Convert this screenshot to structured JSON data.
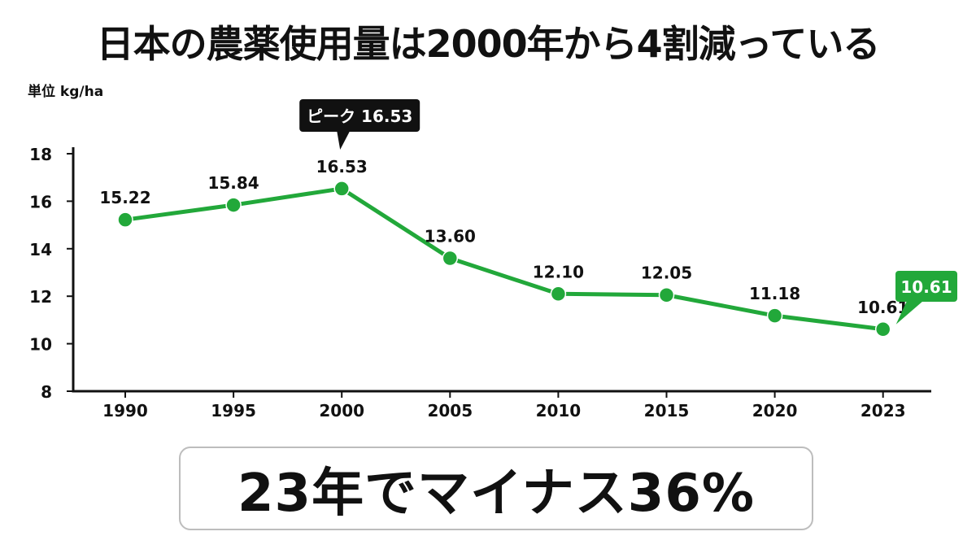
{
  "colors": {
    "line": "#22a83a",
    "axis": "#111111",
    "peak_callout": "#111111",
    "latest_callout": "#22a83a"
  },
  "chart_data": {
    "type": "line",
    "title": "日本の農薬使用量は2000年から4割減っている",
    "ylabel": "単位 kg/ha",
    "xlabel": "",
    "ylim": [
      8,
      18
    ],
    "yticks": [
      "18",
      "16",
      "14",
      "12",
      "10",
      "8"
    ],
    "categories": [
      "1990",
      "1995",
      "2000",
      "2005",
      "2010",
      "2015",
      "2020",
      "2023"
    ],
    "series": [
      {
        "values": [
          15.22,
          15.84,
          16.53,
          13.6,
          12.1,
          12.05,
          11.18,
          10.61
        ],
        "labels": [
          "15.22",
          "15.84",
          "16.53",
          "13.60",
          "12.10",
          "12.05",
          "11.18",
          "10.61"
        ]
      }
    ],
    "grid": false,
    "legend": "none",
    "annotations": {
      "peak": "ピーク 16.53",
      "latest": "10.61"
    }
  },
  "summary": {
    "text": "23年でマイナス36%"
  }
}
